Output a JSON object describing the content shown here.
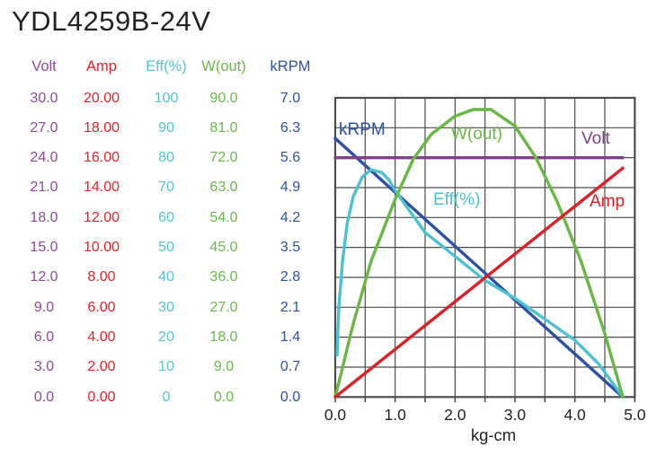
{
  "title": "YDL4259B-24V",
  "table": {
    "headers": [
      {
        "label": "Volt",
        "color": "#8d4a97"
      },
      {
        "label": "Amp",
        "color": "#e1242a"
      },
      {
        "label": "Eff(%)",
        "color": "#55c3d2"
      },
      {
        "label": "W(out)",
        "color": "#68ba48"
      },
      {
        "label": "kRPM",
        "color": "#2c51a5"
      }
    ],
    "rows": [
      [
        "30.0",
        "20.00",
        "100",
        "90.0",
        "7.0"
      ],
      [
        "27.0",
        "18.00",
        "90",
        "81.0",
        "6.3"
      ],
      [
        "24.0",
        "16.00",
        "80",
        "72.0",
        "5.6"
      ],
      [
        "21.0",
        "14.00",
        "70",
        "63.0",
        "4.9"
      ],
      [
        "18.0",
        "12.00",
        "60",
        "54.0",
        "4.2"
      ],
      [
        "15.0",
        "10.00",
        "50",
        "45.0",
        "3.5"
      ],
      [
        "12.0",
        "8.00",
        "40",
        "36.0",
        "2.8"
      ],
      [
        "9.0",
        "6.00",
        "30",
        "27.0",
        "2.1"
      ],
      [
        "6.0",
        "4.00",
        "20",
        "18.0",
        "1.4"
      ],
      [
        "3.0",
        "2.00",
        "10",
        "9.0",
        "0.7"
      ],
      [
        "0.0",
        "0.00",
        "0",
        "0.0",
        "0.0"
      ]
    ]
  },
  "chart_data": {
    "type": "line",
    "xlabel": "kg-cm",
    "x_range": [
      0,
      5
    ],
    "x_ticks": [
      "0.0",
      "1.0",
      "2.0",
      "3.0",
      "4.0",
      "5.0"
    ],
    "grid": {
      "cols": 10,
      "rows": 10,
      "on": true,
      "color": "#4d4d4d",
      "border_color": "#4d4d4d"
    },
    "legend_position": "inline-labels",
    "stall_torque_kgcm": 4.8,
    "series": [
      {
        "name": "kRPM",
        "label": "kRPM",
        "color": "#2c51a5",
        "scale_max": 7,
        "points": [
          [
            0,
            6.05
          ],
          [
            4.8,
            0
          ]
        ]
      },
      {
        "name": "Eff",
        "label": "Eff(%)",
        "color": "#4cc2d1",
        "scale_max": 100,
        "points": [
          [
            0.03,
            14
          ],
          [
            0.06,
            30
          ],
          [
            0.12,
            45
          ],
          [
            0.2,
            58
          ],
          [
            0.3,
            67
          ],
          [
            0.45,
            73.5
          ],
          [
            0.6,
            76
          ],
          [
            0.78,
            75
          ],
          [
            0.9,
            72.5
          ],
          [
            1.0,
            69
          ],
          [
            1.25,
            62
          ],
          [
            1.5,
            55
          ],
          [
            2.0,
            47
          ],
          [
            2.5,
            39
          ],
          [
            3.0,
            33
          ],
          [
            3.5,
            26
          ],
          [
            4.0,
            19
          ],
          [
            4.4,
            11
          ],
          [
            4.8,
            0
          ]
        ]
      },
      {
        "name": "Volt",
        "label": "Volt",
        "color": "#7e4088",
        "scale_max": 30,
        "points": [
          [
            0,
            24
          ],
          [
            4.8,
            24
          ]
        ]
      },
      {
        "name": "Wout",
        "label": "W(out)",
        "color": "#67b944",
        "scale_max": 90,
        "points": [
          [
            0,
            0
          ],
          [
            0.3,
            22
          ],
          [
            0.6,
            41
          ],
          [
            1.0,
            59.5
          ],
          [
            1.3,
            71.5
          ],
          [
            1.6,
            79
          ],
          [
            2.0,
            84.5
          ],
          [
            2.3,
            86.5
          ],
          [
            2.6,
            86.5
          ],
          [
            3.0,
            81.5
          ],
          [
            3.35,
            72
          ],
          [
            3.7,
            59
          ],
          [
            4.1,
            41
          ],
          [
            4.5,
            19
          ],
          [
            4.8,
            0
          ]
        ]
      },
      {
        "name": "Amp",
        "label": "Amp",
        "color": "#da2128",
        "scale_max": 20,
        "points": [
          [
            0,
            0
          ],
          [
            4.8,
            15.3
          ]
        ]
      }
    ]
  }
}
